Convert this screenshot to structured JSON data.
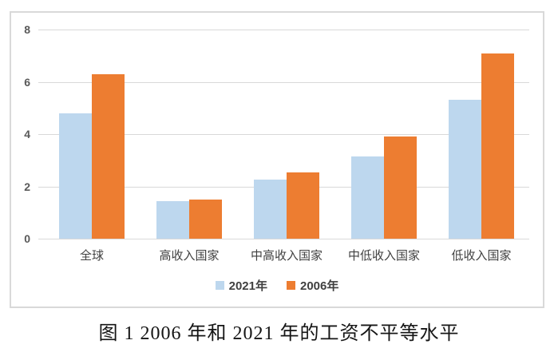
{
  "chart_data": {
    "type": "bar",
    "title": "",
    "categories": [
      "全球",
      "高收入国家",
      "中高收入国家",
      "中低收入国家",
      "低收入国家"
    ],
    "series": [
      {
        "name": "2021年",
        "color": "#BDD7EE",
        "values": [
          4.8,
          1.45,
          2.25,
          3.15,
          5.3
        ]
      },
      {
        "name": "2006年",
        "color": "#ED7D31",
        "values": [
          6.3,
          1.5,
          2.55,
          3.9,
          7.1
        ]
      }
    ],
    "xlabel": "",
    "ylabel": "",
    "ylim": [
      0,
      8
    ],
    "yticks": [
      0,
      2,
      4,
      6,
      8
    ],
    "grid": true,
    "legend_position": "bottom"
  },
  "caption": "图 1 2006 年和 2021 年的工资不平等水平",
  "colors": {
    "grid": "#D9D9D9",
    "card_border": "#D9D9D9",
    "tick_label": "#595959",
    "category_label": "#404040",
    "legend_label": "#404040",
    "series_2021": "#BDD7EE",
    "series_2006": "#ED7D31",
    "background": "#FFFFFF"
  }
}
